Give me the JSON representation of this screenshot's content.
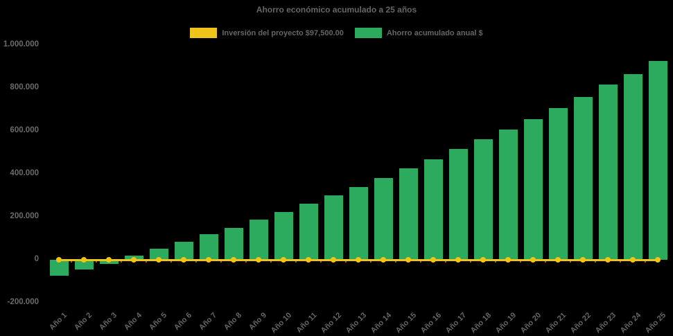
{
  "title": "Ahorro económico acumulado a 25 años",
  "colors": {
    "background": "#000000",
    "bar_green": "#2cab5e",
    "line_yellow": "#eec31a",
    "dot_yellow": "#f3c510",
    "text_gray": "#666666",
    "tick_gray": "#6b6b6b"
  },
  "legend": [
    {
      "label": "Inversión del proyecto $97,500.00",
      "color": "#eec31a"
    },
    {
      "label": "Ahorro acumulado anual $",
      "color": "#2cab5e"
    }
  ],
  "chart_data": {
    "type": "bar",
    "title": "Ahorro económico acumulado a 25 años",
    "categories": [
      "Año 1",
      "Año 2",
      "Año 3",
      "Año 4",
      "Año 5",
      "Año 6",
      "Año 7",
      "Año 8",
      "Año 9",
      "Año 10",
      "Año 11",
      "Año 12",
      "Año 13",
      "Año 14",
      "Año 15",
      "Año 16",
      "Año 17",
      "Año 18",
      "Año 19",
      "Año 20",
      "Año 21",
      "Año 22",
      "Año 23",
      "Año 24",
      "Año 25"
    ],
    "series": [
      {
        "name": "Inversión del proyecto $97,500.00",
        "type": "line",
        "color": "#eec31a",
        "investment_amount": 97500,
        "plotted_value": 0,
        "values": [
          0,
          0,
          0,
          0,
          0,
          0,
          0,
          0,
          0,
          0,
          0,
          0,
          0,
          0,
          0,
          0,
          0,
          0,
          0,
          0,
          0,
          0,
          0,
          0,
          0
        ]
      },
      {
        "name": "Ahorro acumulado anual $",
        "type": "bar",
        "color": "#2cab5e",
        "values": [
          -73000,
          -46000,
          -18000,
          20000,
          52000,
          85000,
          118000,
          150000,
          187000,
          222000,
          262000,
          300000,
          339000,
          381000,
          426000,
          467000,
          517000,
          560000,
          608000,
          655000,
          708000,
          759000,
          817000,
          866000,
          925000
        ]
      }
    ],
    "y_ticks": [
      1000000,
      800000,
      600000,
      400000,
      200000,
      0,
      -200000
    ],
    "y_tick_labels": [
      "1.000.000",
      "800.000",
      "600.000",
      "400.000",
      "200.000",
      "0",
      "-200.000"
    ],
    "ylim": [
      -200000,
      1000000
    ],
    "xlabel": "",
    "ylabel": "",
    "grid": false,
    "legend_position": "top"
  }
}
